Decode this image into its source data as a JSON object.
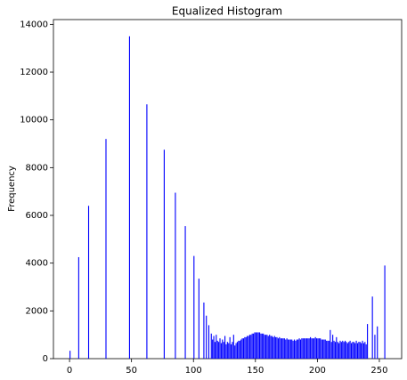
{
  "chart_data": {
    "type": "bar",
    "title": "Equalized Histogram",
    "y_label": "Frequency",
    "x": [
      0,
      7,
      15,
      29,
      48,
      62,
      76,
      85,
      93,
      100,
      104,
      108,
      110,
      112,
      114,
      115,
      116,
      117,
      118,
      119,
      120,
      121,
      122,
      123,
      124,
      125,
      126,
      127,
      128,
      129,
      130,
      131,
      132,
      133,
      134,
      135,
      136,
      137,
      138,
      139,
      140,
      141,
      142,
      143,
      144,
      145,
      146,
      147,
      148,
      149,
      150,
      151,
      152,
      153,
      154,
      155,
      156,
      157,
      158,
      159,
      160,
      161,
      162,
      163,
      164,
      165,
      166,
      167,
      168,
      169,
      170,
      171,
      172,
      173,
      174,
      175,
      176,
      177,
      178,
      179,
      180,
      181,
      182,
      183,
      184,
      185,
      186,
      187,
      188,
      189,
      190,
      191,
      192,
      193,
      194,
      195,
      196,
      197,
      198,
      199,
      200,
      201,
      202,
      203,
      204,
      205,
      206,
      207,
      208,
      209,
      210,
      211,
      212,
      213,
      214,
      215,
      216,
      217,
      218,
      219,
      220,
      221,
      222,
      223,
      224,
      225,
      226,
      227,
      228,
      229,
      230,
      231,
      232,
      233,
      234,
      235,
      236,
      237,
      238,
      239,
      240,
      244,
      246,
      248,
      254
    ],
    "values": [
      330,
      4250,
      6400,
      9200,
      13500,
      10650,
      8750,
      6950,
      5550,
      4300,
      3350,
      2350,
      1800,
      1400,
      1050,
      800,
      950,
      700,
      1000,
      750,
      700,
      850,
      650,
      800,
      700,
      950,
      600,
      700,
      650,
      900,
      600,
      700,
      1000,
      550,
      650,
      700,
      750,
      750,
      800,
      850,
      850,
      900,
      900,
      950,
      950,
      1000,
      1000,
      1050,
      1050,
      1100,
      1100,
      1100,
      1100,
      1100,
      1050,
      1050,
      1050,
      1000,
      1000,
      1000,
      950,
      1000,
      950,
      950,
      900,
      950,
      900,
      900,
      850,
      900,
      850,
      850,
      850,
      850,
      800,
      850,
      800,
      800,
      800,
      800,
      750,
      800,
      750,
      800,
      800,
      850,
      800,
      850,
      850,
      850,
      850,
      850,
      850,
      850,
      900,
      850,
      850,
      850,
      900,
      850,
      850,
      850,
      850,
      800,
      800,
      800,
      800,
      750,
      750,
      750,
      1200,
      700,
      1000,
      750,
      700,
      900,
      700,
      650,
      750,
      700,
      750,
      700,
      750,
      700,
      650,
      700,
      750,
      650,
      700,
      700,
      650,
      750,
      650,
      700,
      700,
      650,
      750,
      650,
      700,
      600,
      1450,
      2600,
      1000,
      1350,
      3900
    ],
    "color": "#0000ff",
    "xlim": [
      -13,
      268
    ],
    "xticks": [
      0,
      50,
      100,
      150,
      200,
      250
    ],
    "ylim": [
      0,
      14200
    ],
    "yticks": [
      0,
      2000,
      4000,
      6000,
      8000,
      10000,
      12000,
      14000
    ]
  }
}
